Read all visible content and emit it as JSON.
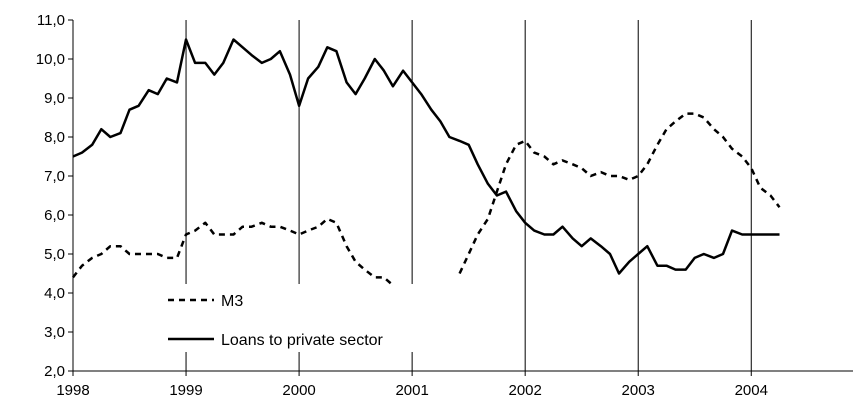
{
  "chart_data": {
    "type": "line",
    "title": "",
    "xlabel": "",
    "ylabel": "",
    "xlim": [
      1998.0,
      2004.9
    ],
    "ylim": [
      2.0,
      11.0
    ],
    "grid": "vertical lines at each year",
    "legend_position": "lower-left inside plot",
    "x_ticks": [
      {
        "value": 1998,
        "label": "1998"
      },
      {
        "value": 1999,
        "label": "1999"
      },
      {
        "value": 2000,
        "label": "2000"
      },
      {
        "value": 2001,
        "label": "2001"
      },
      {
        "value": 2002,
        "label": "2002"
      },
      {
        "value": 2003,
        "label": "2003"
      },
      {
        "value": 2004,
        "label": "2004"
      }
    ],
    "y_ticks": [
      {
        "value": 2.0,
        "label": "2,0"
      },
      {
        "value": 3.0,
        "label": "3,0"
      },
      {
        "value": 4.0,
        "label": "4,0"
      },
      {
        "value": 5.0,
        "label": "5,0"
      },
      {
        "value": 6.0,
        "label": "6,0"
      },
      {
        "value": 7.0,
        "label": "7,0"
      },
      {
        "value": 8.0,
        "label": "8,0"
      },
      {
        "value": 9.0,
        "label": "9,0"
      },
      {
        "value": 10.0,
        "label": "10,0"
      },
      {
        "value": 11.0,
        "label": "11,0"
      }
    ],
    "series": [
      {
        "name": "M3",
        "style": "dashed",
        "color": "#000000",
        "segments": [
          [
            [
              1998.0,
              4.4
            ],
            [
              1998.08,
              4.7
            ],
            [
              1998.17,
              4.9
            ],
            [
              1998.25,
              5.0
            ],
            [
              1998.33,
              5.2
            ],
            [
              1998.42,
              5.2
            ],
            [
              1998.5,
              5.0
            ],
            [
              1998.58,
              5.0
            ],
            [
              1998.67,
              5.0
            ],
            [
              1998.75,
              5.0
            ],
            [
              1998.83,
              4.9
            ],
            [
              1998.92,
              4.9
            ],
            [
              1999.0,
              5.5
            ],
            [
              1999.08,
              5.6
            ],
            [
              1999.17,
              5.8
            ],
            [
              1999.25,
              5.5
            ],
            [
              1999.33,
              5.5
            ],
            [
              1999.42,
              5.5
            ],
            [
              1999.5,
              5.7
            ],
            [
              1999.58,
              5.7
            ],
            [
              1999.67,
              5.8
            ],
            [
              1999.75,
              5.7
            ],
            [
              1999.83,
              5.7
            ],
            [
              1999.92,
              5.6
            ],
            [
              2000.0,
              5.5
            ],
            [
              2000.08,
              5.6
            ],
            [
              2000.17,
              5.7
            ],
            [
              2000.25,
              5.9
            ],
            [
              2000.33,
              5.8
            ],
            [
              2000.42,
              5.2
            ],
            [
              2000.5,
              4.8
            ],
            [
              2000.58,
              4.6
            ],
            [
              2000.67,
              4.4
            ],
            [
              2000.75,
              4.4
            ],
            [
              2000.83,
              4.2
            ]
          ],
          [
            [
              2001.42,
              4.5
            ],
            [
              2001.5,
              5.0
            ],
            [
              2001.58,
              5.5
            ],
            [
              2001.67,
              5.9
            ],
            [
              2001.75,
              6.6
            ],
            [
              2001.83,
              7.3
            ],
            [
              2001.92,
              7.8
            ],
            [
              2002.0,
              7.9
            ],
            [
              2002.08,
              7.6
            ],
            [
              2002.17,
              7.5
            ],
            [
              2002.25,
              7.3
            ],
            [
              2002.33,
              7.4
            ],
            [
              2002.42,
              7.3
            ],
            [
              2002.5,
              7.2
            ],
            [
              2002.58,
              7.0
            ],
            [
              2002.67,
              7.1
            ],
            [
              2002.75,
              7.0
            ],
            [
              2002.83,
              7.0
            ],
            [
              2002.92,
              6.9
            ],
            [
              2003.0,
              7.0
            ],
            [
              2003.08,
              7.3
            ],
            [
              2003.17,
              7.8
            ],
            [
              2003.25,
              8.2
            ],
            [
              2003.33,
              8.4
            ],
            [
              2003.42,
              8.6
            ],
            [
              2003.5,
              8.6
            ],
            [
              2003.58,
              8.5
            ],
            [
              2003.67,
              8.2
            ],
            [
              2003.75,
              8.0
            ],
            [
              2003.83,
              7.7
            ],
            [
              2003.92,
              7.5
            ],
            [
              2004.0,
              7.2
            ],
            [
              2004.08,
              6.7
            ],
            [
              2004.17,
              6.5
            ],
            [
              2004.25,
              6.2
            ]
          ]
        ]
      },
      {
        "name": "Loans to private sector",
        "style": "solid",
        "color": "#000000",
        "segments": [
          [
            [
              1998.0,
              7.5
            ],
            [
              1998.08,
              7.6
            ],
            [
              1998.17,
              7.8
            ],
            [
              1998.25,
              8.2
            ],
            [
              1998.33,
              8.0
            ],
            [
              1998.42,
              8.1
            ],
            [
              1998.5,
              8.7
            ],
            [
              1998.58,
              8.8
            ],
            [
              1998.67,
              9.2
            ],
            [
              1998.75,
              9.1
            ],
            [
              1998.83,
              9.5
            ],
            [
              1998.92,
              9.4
            ],
            [
              1999.0,
              10.5
            ],
            [
              1999.08,
              9.9
            ],
            [
              1999.17,
              9.9
            ],
            [
              1999.25,
              9.6
            ],
            [
              1999.33,
              9.9
            ],
            [
              1999.42,
              10.5
            ],
            [
              1999.5,
              10.3
            ],
            [
              1999.58,
              10.1
            ],
            [
              1999.67,
              9.9
            ],
            [
              1999.75,
              10.0
            ],
            [
              1999.83,
              10.2
            ],
            [
              1999.92,
              9.6
            ],
            [
              2000.0,
              8.8
            ],
            [
              2000.08,
              9.5
            ],
            [
              2000.17,
              9.8
            ],
            [
              2000.25,
              10.3
            ],
            [
              2000.33,
              10.2
            ],
            [
              2000.42,
              9.4
            ],
            [
              2000.5,
              9.1
            ],
            [
              2000.58,
              9.5
            ],
            [
              2000.67,
              10.0
            ],
            [
              2000.75,
              9.7
            ],
            [
              2000.83,
              9.3
            ],
            [
              2000.92,
              9.7
            ],
            [
              2001.0,
              9.4
            ],
            [
              2001.08,
              9.1
            ],
            [
              2001.17,
              8.7
            ],
            [
              2001.25,
              8.4
            ],
            [
              2001.33,
              8.0
            ],
            [
              2001.42,
              7.9
            ],
            [
              2001.5,
              7.8
            ],
            [
              2001.58,
              7.3
            ],
            [
              2001.67,
              6.8
            ],
            [
              2001.75,
              6.5
            ],
            [
              2001.83,
              6.6
            ],
            [
              2001.92,
              6.1
            ],
            [
              2002.0,
              5.8
            ],
            [
              2002.08,
              5.6
            ],
            [
              2002.17,
              5.5
            ],
            [
              2002.25,
              5.5
            ],
            [
              2002.33,
              5.7
            ],
            [
              2002.42,
              5.4
            ],
            [
              2002.5,
              5.2
            ],
            [
              2002.58,
              5.4
            ],
            [
              2002.67,
              5.2
            ],
            [
              2002.75,
              5.0
            ],
            [
              2002.83,
              4.5
            ],
            [
              2002.92,
              4.8
            ],
            [
              2003.0,
              5.0
            ],
            [
              2003.08,
              5.2
            ],
            [
              2003.17,
              4.7
            ],
            [
              2003.25,
              4.7
            ],
            [
              2003.33,
              4.6
            ],
            [
              2003.42,
              4.6
            ],
            [
              2003.5,
              4.9
            ],
            [
              2003.58,
              5.0
            ],
            [
              2003.67,
              4.9
            ],
            [
              2003.75,
              5.0
            ],
            [
              2003.83,
              5.6
            ],
            [
              2003.92,
              5.5
            ],
            [
              2004.0,
              5.5
            ],
            [
              2004.08,
              5.5
            ],
            [
              2004.17,
              5.5
            ],
            [
              2004.25,
              5.5
            ]
          ]
        ]
      }
    ],
    "legend": [
      {
        "label": "M3",
        "style": "dashed"
      },
      {
        "label": "Loans to private sector",
        "style": "solid"
      }
    ]
  }
}
